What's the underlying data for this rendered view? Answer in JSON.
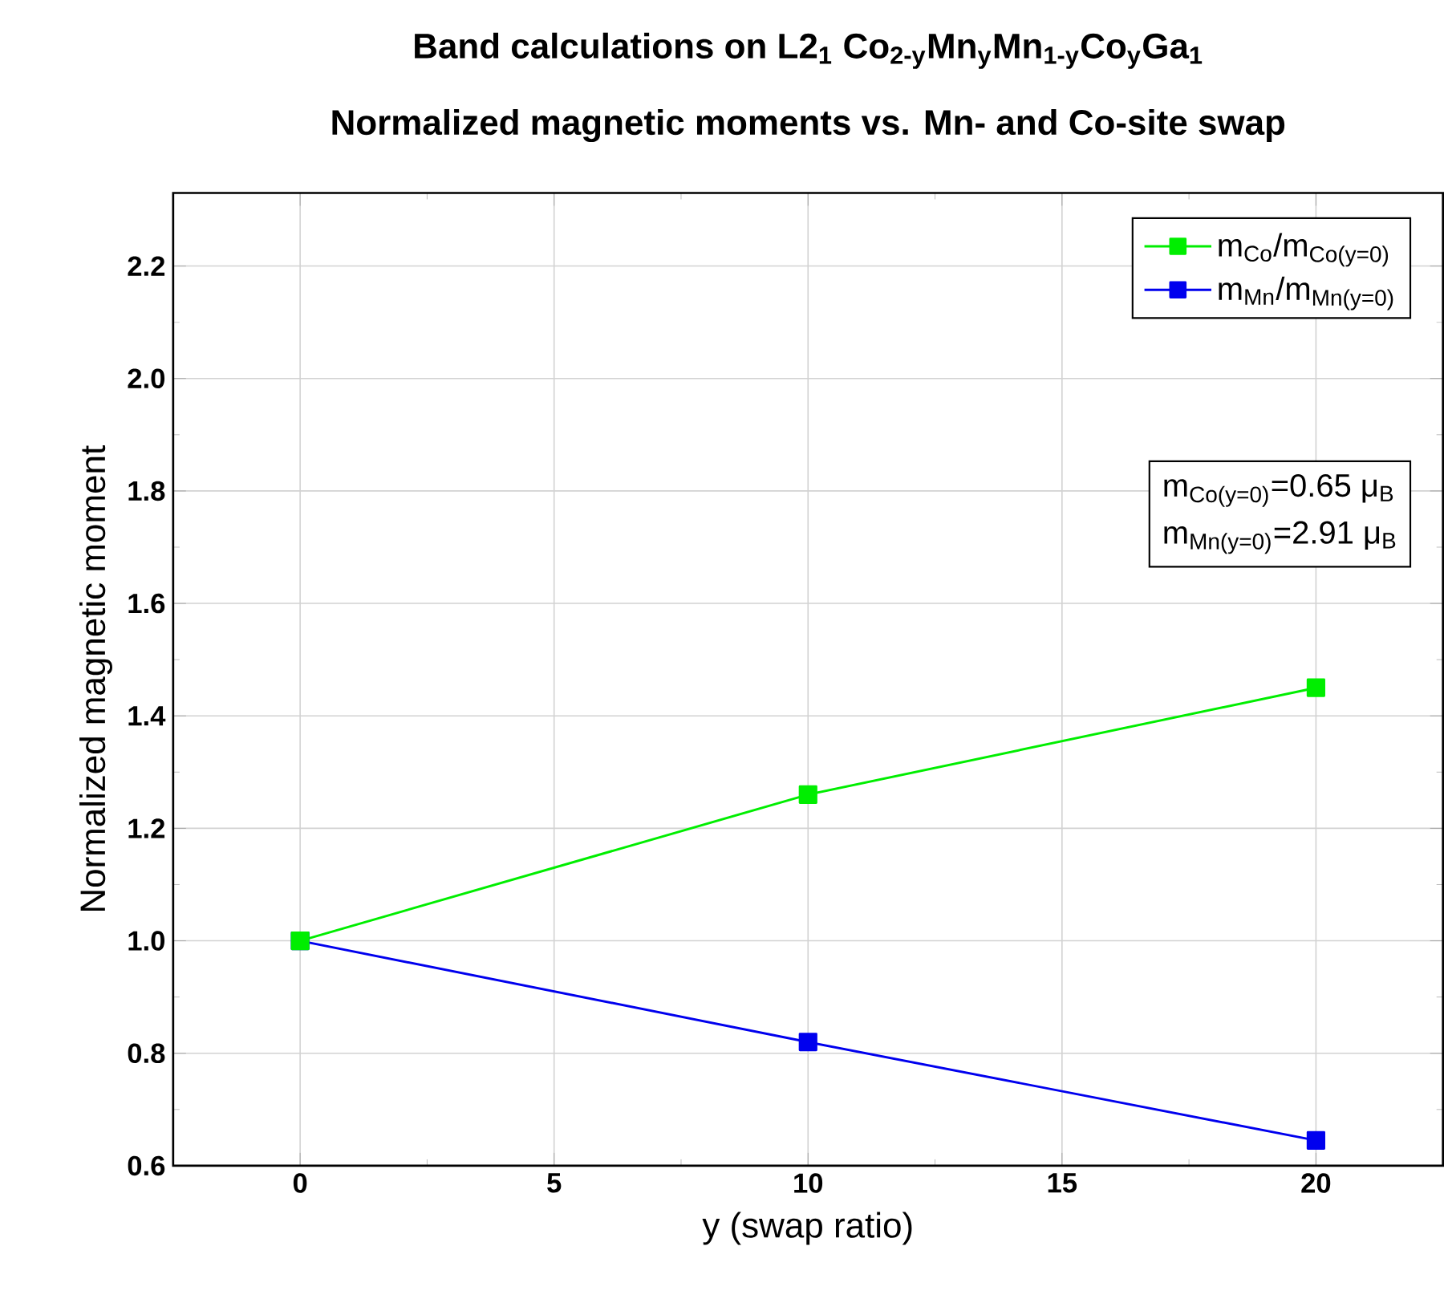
{
  "chart_data": {
    "type": "line",
    "title": "Band calculations on L2$_{1}$ Co$_{2-y}$Mn$_{y}$Mn$_{1-y}$Co$_{y}$Ga$_{1}$",
    "subtitle": "Normalized magnetic moments vs. Mn- and Co-site swap",
    "xlabel": "y (swap ratio)",
    "ylabel": "Normalized magnetic moment",
    "x": [
      0,
      10,
      20
    ],
    "series": [
      {
        "name": "m$_{Co}$/m$_{Co(y=0)}$",
        "color": "#00ee00",
        "values": [
          1.0,
          1.26,
          1.45
        ]
      },
      {
        "name": "m$_{Mn}$/m$_{Mn(y=0)}$",
        "color": "#0000ee",
        "values": [
          1.0,
          0.82,
          0.645
        ]
      }
    ],
    "annotations": [
      "m$_{Co(y=0)}$=0.65 μ$_{B}$",
      "m$_{Mn(y=0)}$=2.91 μ$_{B}$"
    ],
    "xlim": [
      -2.5,
      22.5
    ],
    "ylim": [
      0.6,
      2.33
    ],
    "xticks": [
      0,
      5,
      10,
      15,
      20
    ],
    "yticks": [
      {
        "value": 0.6,
        "label": "0.6"
      },
      {
        "value": 0.8,
        "label": "0.8"
      },
      {
        "value": 1.0,
        "label": "1.0"
      },
      {
        "value": 1.2,
        "label": "1.2"
      },
      {
        "value": 1.4,
        "label": "1.4"
      },
      {
        "value": 1.6,
        "label": "1.6"
      },
      {
        "value": 1.8,
        "label": "1.8"
      },
      {
        "value": 2.0,
        "label": "2.0"
      },
      {
        "value": 2.2,
        "label": "2.2"
      }
    ],
    "grid": true,
    "legend": "top right",
    "marker": "square",
    "line_style": "solid"
  }
}
